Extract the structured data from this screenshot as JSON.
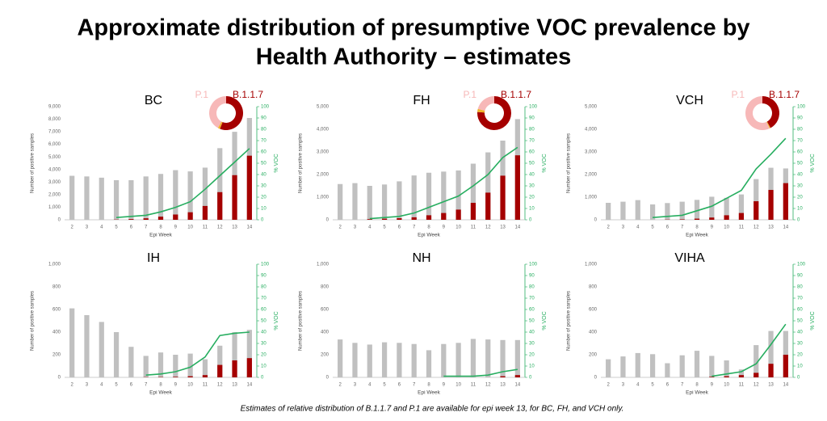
{
  "title": "Approximate distribution of presumptive VOC prevalence by",
  "title2": "Health Authority – estimates",
  "footnote": "Estimates of relative distribution of B.1.1.7 and P.1 are available for epi week 13, for BC, FH, and VCH only.",
  "chart_data": [
    {
      "type": "bar",
      "title": "BC",
      "y_label": "Number of positive samples",
      "y2_label": "% VOC",
      "x_label": "Epi Week",
      "categories": [
        "2",
        "3",
        "4",
        "5",
        "6",
        "7",
        "8",
        "9",
        "10",
        "11",
        "12",
        "13",
        "14"
      ],
      "series": [
        {
          "color": "#c0c0c0",
          "values": [
            3500,
            3450,
            3350,
            3150,
            3150,
            3450,
            3650,
            3950,
            3850,
            4150,
            5700,
            7000,
            8100
          ]
        },
        {
          "color": "#a50000",
          "values": [
            null,
            null,
            null,
            20,
            60,
            120,
            250,
            420,
            600,
            1100,
            2200,
            3550,
            5100
          ]
        },
        {
          "color": "#27ae60",
          "axis": "y2",
          "type": "line",
          "values": [
            null,
            null,
            null,
            2,
            3,
            4,
            7,
            11,
            16,
            27,
            39,
            51,
            63
          ]
        }
      ],
      "ylim": [
        0,
        9000
      ],
      "yticks": [
        0,
        {
          "value": 1000,
          "label": "1,000"
        },
        {
          "value": 2000,
          "label": "2,000"
        },
        {
          "value": 3000,
          "label": "3,000"
        },
        {
          "value": 4000,
          "label": "4,000"
        },
        {
          "value": 5000,
          "label": "5,000"
        },
        {
          "value": 6000,
          "label": "6,000"
        },
        {
          "value": 7000,
          "label": "7,000"
        },
        {
          "value": 8000,
          "label": "8,000"
        },
        {
          "value": 9000,
          "label": "9,000"
        }
      ],
      "y2lim": [
        0,
        100
      ],
      "y2ticks": [
        0,
        10,
        20,
        30,
        40,
        50,
        60,
        70,
        80,
        90,
        100
      ],
      "inset": {
        "type": "pie",
        "labels": [
          "B.1.1.7",
          null,
          "P.1"
        ],
        "values": [
          56,
          2,
          42
        ],
        "colors": [
          "#a50000",
          "#f0b429",
          "#f7b8b8"
        ]
      }
    },
    {
      "type": "bar",
      "title": "FH",
      "y_label": "Number of positive samples",
      "y2_label": "% VOC",
      "x_label": "Epi Week",
      "categories": [
        "2",
        "3",
        "4",
        "5",
        "6",
        "7",
        "8",
        "9",
        "10",
        "11",
        "12",
        "13",
        "14"
      ],
      "series": [
        {
          "color": "#c0c0c0",
          "values": [
            1580,
            1620,
            1500,
            1560,
            1700,
            1960,
            2080,
            2130,
            2180,
            2480,
            2980,
            3500,
            4450
          ]
        },
        {
          "color": "#a50000",
          "values": [
            null,
            null,
            30,
            50,
            70,
            110,
            200,
            300,
            450,
            750,
            1200,
            1950,
            2850
          ]
        },
        {
          "color": "#27ae60",
          "axis": "y2",
          "type": "line",
          "values": [
            null,
            null,
            1,
            2,
            3,
            6,
            11,
            16,
            21,
            30,
            40,
            55,
            64
          ]
        }
      ],
      "ylim": [
        0,
        5000
      ],
      "yticks": [
        0,
        {
          "value": 1000,
          "label": "1,000"
        },
        {
          "value": 2000,
          "label": "2,000"
        },
        {
          "value": 3000,
          "label": "3,000"
        },
        {
          "value": 4000,
          "label": "4,000"
        },
        {
          "value": 5000,
          "label": "5,000"
        }
      ],
      "y2lim": [
        0,
        100
      ],
      "y2ticks": [
        0,
        10,
        20,
        30,
        40,
        50,
        60,
        70,
        80,
        90,
        100
      ],
      "inset": {
        "type": "pie",
        "labels": [
          "B.1.1.7",
          null,
          "P.1"
        ],
        "values": [
          76,
          3,
          21
        ],
        "colors": [
          "#a50000",
          "#f0b429",
          "#f7b8b8"
        ]
      }
    },
    {
      "type": "bar",
      "title": "VCH",
      "y_label": "Number of positive samples",
      "y2_label": "% VOC",
      "x_label": "Epi Week",
      "categories": [
        "2",
        "3",
        "4",
        "5",
        "6",
        "7",
        "8",
        "9",
        "10",
        "11",
        "12",
        "13",
        "14"
      ],
      "series": [
        {
          "color": "#c0c0c0",
          "values": [
            750,
            800,
            870,
            680,
            740,
            800,
            880,
            1020,
            970,
            1120,
            1800,
            2300,
            2270
          ]
        },
        {
          "color": "#a50000",
          "values": [
            null,
            null,
            null,
            null,
            10,
            20,
            50,
            100,
            200,
            300,
            820,
            1320,
            1620
          ]
        },
        {
          "color": "#27ae60",
          "axis": "y2",
          "type": "line",
          "values": [
            null,
            null,
            null,
            2,
            3,
            4,
            8,
            12,
            19,
            26,
            45,
            58,
            72
          ]
        }
      ],
      "ylim": [
        0,
        5000
      ],
      "yticks": [
        0,
        {
          "value": 1000,
          "label": "1,000"
        },
        {
          "value": 2000,
          "label": "2,000"
        },
        {
          "value": 3000,
          "label": "3,000"
        },
        {
          "value": 4000,
          "label": "4,000"
        },
        {
          "value": 5000,
          "label": "5,000"
        }
      ],
      "y2lim": [
        0,
        100
      ],
      "y2ticks": [
        0,
        10,
        20,
        30,
        40,
        50,
        60,
        70,
        80,
        90,
        100
      ],
      "inset": {
        "type": "pie",
        "labels": [
          "B.1.1.7",
          null,
          "P.1"
        ],
        "values": [
          42,
          1,
          57
        ],
        "colors": [
          "#a50000",
          "#f0b429",
          "#f7b8b8"
        ]
      }
    },
    {
      "type": "bar",
      "title": "IH",
      "y_label": "Number of positive samples",
      "y2_label": "% VOC",
      "x_label": "Epi Week",
      "categories": [
        "2",
        "3",
        "4",
        "5",
        "6",
        "7",
        "8",
        "9",
        "10",
        "11",
        "12",
        "13",
        "14"
      ],
      "series": [
        {
          "color": "#c0c0c0",
          "values": [
            610,
            550,
            490,
            400,
            270,
            190,
            220,
            200,
            210,
            160,
            280,
            400,
            420
          ]
        },
        {
          "color": "#a50000",
          "values": [
            null,
            null,
            null,
            null,
            null,
            2,
            3,
            5,
            10,
            20,
            110,
            150,
            170
          ]
        },
        {
          "color": "#27ae60",
          "axis": "y2",
          "type": "line",
          "values": [
            null,
            null,
            null,
            null,
            null,
            2,
            3,
            5,
            9,
            18,
            37,
            39,
            40
          ]
        }
      ],
      "ylim": [
        0,
        1000
      ],
      "yticks": [
        0,
        200,
        400,
        600,
        800,
        {
          "value": 1000,
          "label": "1,000"
        }
      ],
      "y2lim": [
        0,
        100
      ],
      "y2ticks": [
        0,
        10,
        20,
        30,
        40,
        50,
        60,
        70,
        80,
        90,
        100
      ]
    },
    {
      "type": "bar",
      "title": "NH",
      "y_label": "Number of positive samples",
      "y2_label": "% VOC",
      "x_label": "Epi Week",
      "categories": [
        "2",
        "3",
        "4",
        "5",
        "6",
        "7",
        "8",
        "9",
        "10",
        "11",
        "12",
        "13",
        "14"
      ],
      "series": [
        {
          "color": "#c0c0c0",
          "values": [
            335,
            305,
            290,
            310,
            305,
            295,
            240,
            295,
            305,
            340,
            335,
            330,
            330
          ]
        },
        {
          "color": "#a50000",
          "values": [
            null,
            null,
            null,
            null,
            null,
            null,
            null,
            null,
            null,
            null,
            null,
            10,
            20
          ]
        },
        {
          "color": "#27ae60",
          "axis": "y2",
          "type": "line",
          "values": [
            null,
            null,
            null,
            null,
            null,
            null,
            null,
            1,
            1,
            1,
            2,
            5,
            7
          ]
        }
      ],
      "ylim": [
        0,
        1000
      ],
      "yticks": [
        0,
        200,
        400,
        600,
        800,
        {
          "value": 1000,
          "label": "1,000"
        }
      ],
      "y2lim": [
        0,
        100
      ],
      "y2ticks": [
        0,
        10,
        20,
        30,
        40,
        50,
        60,
        70,
        80,
        90,
        100
      ]
    },
    {
      "type": "bar",
      "title": "VIHA",
      "y_label": "Number of positive samples",
      "y2_label": "% VOC",
      "x_label": "Epi Week",
      "categories": [
        "2",
        "3",
        "4",
        "5",
        "6",
        "7",
        "8",
        "9",
        "10",
        "11",
        "12",
        "13",
        "14"
      ],
      "series": [
        {
          "color": "#c0c0c0",
          "values": [
            160,
            185,
            215,
            205,
            125,
            195,
            235,
            190,
            150,
            70,
            285,
            410,
            410
          ]
        },
        {
          "color": "#a50000",
          "values": [
            null,
            null,
            null,
            null,
            null,
            null,
            null,
            5,
            10,
            20,
            40,
            120,
            200
          ]
        },
        {
          "color": "#27ae60",
          "axis": "y2",
          "type": "line",
          "values": [
            null,
            null,
            null,
            null,
            null,
            null,
            null,
            1,
            3,
            5,
            12,
            29,
            47
          ]
        }
      ],
      "ylim": [
        0,
        1000
      ],
      "yticks": [
        0,
        200,
        400,
        600,
        800,
        {
          "value": 1000,
          "label": "1,000"
        }
      ],
      "y2lim": [
        0,
        100
      ],
      "y2ticks": [
        0,
        10,
        20,
        30,
        40,
        50,
        60,
        70,
        80,
        90,
        100
      ]
    }
  ]
}
